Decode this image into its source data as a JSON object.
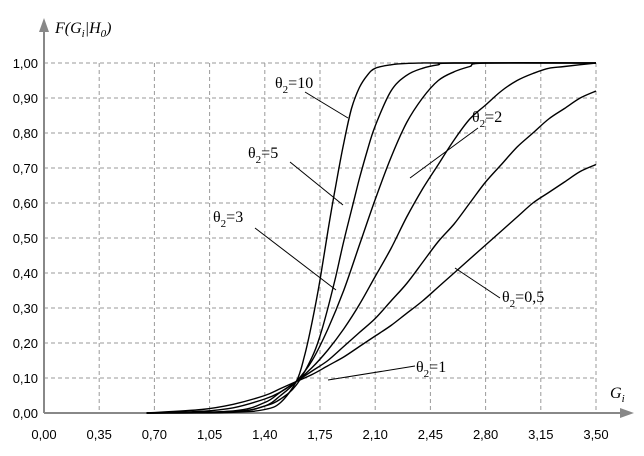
{
  "chart_data": {
    "type": "line",
    "ylabel_parts": [
      "F(G",
      "i",
      "|H",
      "0",
      ")"
    ],
    "xlabel_parts": [
      "G",
      "i"
    ],
    "xlim": [
      0,
      3.5
    ],
    "ylim": [
      0,
      1
    ],
    "grid": true,
    "x_ticks": [
      "0,00",
      "0,35",
      "0,70",
      "1,05",
      "1,40",
      "1,75",
      "2,10",
      "2,45",
      "2,80",
      "3,15",
      "3,50"
    ],
    "y_ticks": [
      "0,00",
      "0,10",
      "0,20",
      "0,30",
      "0,40",
      "0,50",
      "0,60",
      "0,70",
      "0,80",
      "0,90",
      "1,00"
    ],
    "series": [
      {
        "name": "θ2=10",
        "label": {
          "theta": "θ",
          "sub": "2",
          "rest": "=10"
        },
        "x": [
          0.65,
          1.2,
          1.4,
          1.5,
          1.6,
          1.65,
          1.7,
          1.75,
          1.8,
          1.85,
          1.9,
          1.95,
          2.0,
          2.05,
          2.1,
          2.2,
          2.3,
          2.4,
          2.5,
          3.5
        ],
        "y": [
          0.0,
          0.002,
          0.01,
          0.03,
          0.09,
          0.16,
          0.26,
          0.38,
          0.52,
          0.65,
          0.77,
          0.87,
          0.93,
          0.965,
          0.985,
          0.995,
          0.999,
          1.0,
          1.0,
          1.0
        ]
      },
      {
        "name": "θ2=5",
        "label": {
          "theta": "θ",
          "sub": "2",
          "rest": "=5"
        },
        "x": [
          0.65,
          1.2,
          1.4,
          1.5,
          1.6,
          1.7,
          1.75,
          1.8,
          1.85,
          1.9,
          1.95,
          2.0,
          2.05,
          2.1,
          2.2,
          2.3,
          2.4,
          2.5,
          2.6,
          3.5
        ],
        "y": [
          0.0,
          0.003,
          0.02,
          0.04,
          0.08,
          0.16,
          0.22,
          0.3,
          0.39,
          0.49,
          0.58,
          0.67,
          0.75,
          0.82,
          0.92,
          0.965,
          0.985,
          0.995,
          1.0,
          1.0
        ]
      },
      {
        "name": "θ2=3",
        "label": {
          "theta": "θ",
          "sub": "2",
          "rest": "=3"
        },
        "x": [
          0.65,
          1.2,
          1.4,
          1.5,
          1.6,
          1.7,
          1.8,
          1.9,
          2.0,
          2.1,
          2.2,
          2.3,
          2.4,
          2.5,
          2.6,
          2.7,
          2.8,
          3.5
        ],
        "y": [
          0.0,
          0.004,
          0.02,
          0.05,
          0.09,
          0.15,
          0.24,
          0.35,
          0.48,
          0.61,
          0.73,
          0.83,
          0.9,
          0.95,
          0.975,
          0.99,
          1.0,
          1.0
        ]
      },
      {
        "name": "θ2=2",
        "label": {
          "theta": "θ",
          "sub": "2",
          "rest": "=2"
        },
        "x": [
          0.65,
          1.2,
          1.4,
          1.5,
          1.6,
          1.7,
          1.8,
          1.9,
          2.0,
          2.1,
          2.2,
          2.3,
          2.4,
          2.5,
          2.6,
          2.7,
          2.8,
          2.9,
          3.0,
          3.1,
          3.2,
          3.3,
          3.5
        ],
        "y": [
          0.0,
          0.006,
          0.03,
          0.06,
          0.09,
          0.13,
          0.18,
          0.24,
          0.31,
          0.39,
          0.47,
          0.56,
          0.64,
          0.71,
          0.78,
          0.84,
          0.88,
          0.92,
          0.95,
          0.97,
          0.985,
          0.99,
          1.0
        ]
      },
      {
        "name": "θ2=1",
        "label": {
          "theta": "θ",
          "sub": "2",
          "rest": "=1"
        },
        "x": [
          0.65,
          1.0,
          1.2,
          1.4,
          1.5,
          1.6,
          1.7,
          1.8,
          1.9,
          2.0,
          2.1,
          2.2,
          2.3,
          2.4,
          2.5,
          2.6,
          2.7,
          2.8,
          2.9,
          3.0,
          3.1,
          3.2,
          3.3,
          3.4,
          3.5
        ],
        "y": [
          0.0,
          0.005,
          0.015,
          0.04,
          0.06,
          0.09,
          0.12,
          0.15,
          0.19,
          0.23,
          0.27,
          0.32,
          0.37,
          0.43,
          0.49,
          0.54,
          0.6,
          0.66,
          0.71,
          0.76,
          0.8,
          0.84,
          0.87,
          0.9,
          0.92
        ]
      },
      {
        "name": "θ2=0,5",
        "label": {
          "theta": "θ",
          "sub": "2",
          "rest": "=0,5"
        },
        "x": [
          0.65,
          1.0,
          1.2,
          1.4,
          1.5,
          1.6,
          1.7,
          1.8,
          1.9,
          2.0,
          2.1,
          2.2,
          2.3,
          2.4,
          2.5,
          2.6,
          2.7,
          2.8,
          2.9,
          3.0,
          3.1,
          3.2,
          3.3,
          3.4,
          3.5
        ],
        "y": [
          0.0,
          0.01,
          0.025,
          0.05,
          0.07,
          0.09,
          0.11,
          0.135,
          0.16,
          0.19,
          0.22,
          0.25,
          0.285,
          0.32,
          0.36,
          0.4,
          0.44,
          0.48,
          0.52,
          0.56,
          0.6,
          0.63,
          0.66,
          0.69,
          0.71
        ]
      }
    ]
  }
}
